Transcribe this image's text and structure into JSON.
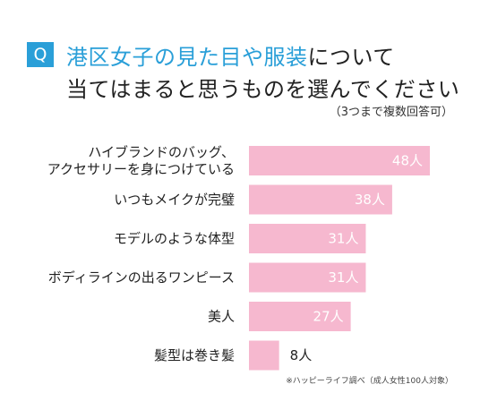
{
  "header": {
    "q_label": "Q",
    "title_accent": "港区女子の見た目や服装",
    "title_rest": "について",
    "title_line2": "当てはまると思うものを選んでください",
    "note": "（3つまで複数回答可）"
  },
  "source_note": "※ハッピーライフ調べ（成人女性100人対象）",
  "colors": {
    "accent": "#2a9fd8",
    "bar": "#f6b8cf"
  },
  "chart_data": {
    "type": "bar",
    "orientation": "horizontal",
    "categories": [
      [
        "ハイブランドのバッグ、",
        "アクセサリーを身につけている"
      ],
      [
        "いつもメイクが完璧"
      ],
      [
        "モデルのような体型"
      ],
      [
        "ボディラインの出るワンピース"
      ],
      [
        "美人"
      ],
      [
        "髪型は巻き髪"
      ]
    ],
    "values": [
      48,
      38,
      31,
      31,
      27,
      8
    ],
    "value_labels": [
      "48人",
      "38人",
      "31人",
      "31人",
      "27人",
      "8人"
    ],
    "unit": "人",
    "xlim": [
      0,
      48
    ],
    "grid": false,
    "legend": "none"
  }
}
